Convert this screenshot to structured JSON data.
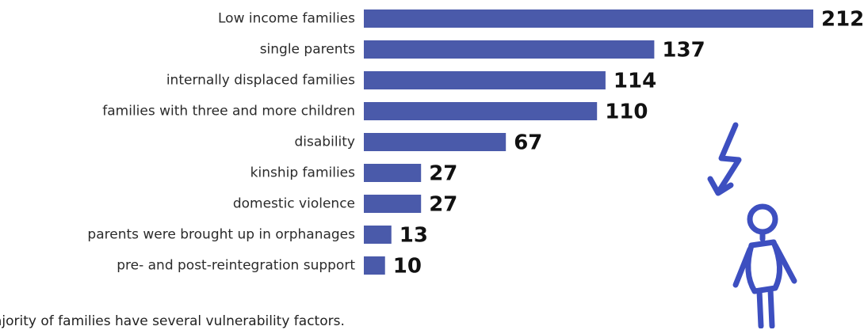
{
  "chart_data": {
    "type": "bar",
    "orientation": "horizontal",
    "categories": [
      "Low income families",
      "single parents",
      "internally displaced families",
      "families with three and more children",
      "disability",
      "kinship families",
      "domestic violence",
      "parents were brought up in orphanages",
      "pre- and post-reintegration support"
    ],
    "values": [
      212,
      137,
      114,
      110,
      67,
      27,
      27,
      13,
      10
    ],
    "bar_color": "#4a5aaa",
    "grid": false,
    "legend": "none"
  },
  "note": "ajority of families have several vulnerability factors.",
  "decoration": {
    "icon": "stick-figure-with-lightning-arrow",
    "color": "#3d4fc0"
  }
}
